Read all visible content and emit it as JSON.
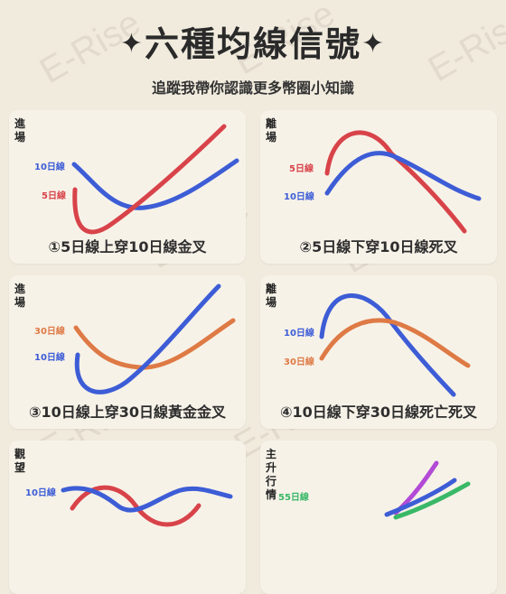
{
  "watermark": "E-Rise",
  "title": "六種均線信號",
  "title_star": "✦",
  "subtitle": "追蹤我帶你認識更多幣圈小知識",
  "panels": [
    {
      "tag": "進場",
      "labels": [
        "10日線",
        "5日線"
      ],
      "caption": "①5日線上穿10日線金叉"
    },
    {
      "tag": "離場",
      "labels": [
        "5日線",
        "10日線"
      ],
      "caption": "②5日線下穿10日線死叉"
    },
    {
      "tag": "進場",
      "labels": [
        "30日線",
        "10日線"
      ],
      "caption": "③10日線上穿30日線黃金金叉"
    },
    {
      "tag": "離場",
      "labels": [
        "10日線",
        "30日線"
      ],
      "caption": "④10日線下穿30日線死亡死叉"
    },
    {
      "tag": "觀望",
      "labels": [
        "10日線"
      ]
    },
    {
      "tag": "主升行情",
      "labels": [
        "55日線"
      ]
    }
  ],
  "colors": {
    "blue": "#3d5dd6",
    "red": "#d8434a",
    "orange": "#de7a45",
    "green": "#39b867",
    "purple": "#b24ad6",
    "background": "#f1ebde"
  }
}
